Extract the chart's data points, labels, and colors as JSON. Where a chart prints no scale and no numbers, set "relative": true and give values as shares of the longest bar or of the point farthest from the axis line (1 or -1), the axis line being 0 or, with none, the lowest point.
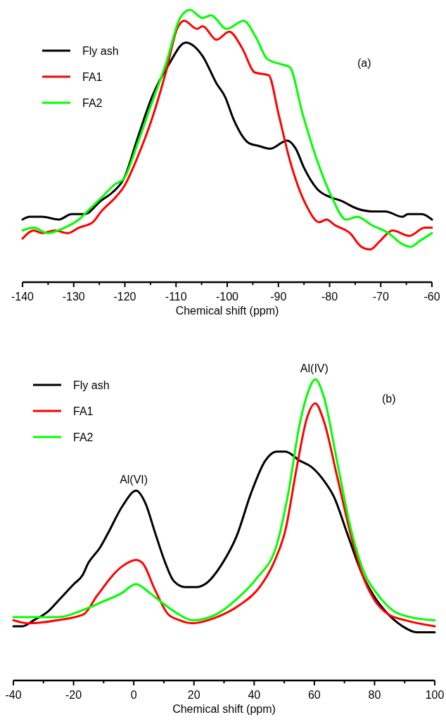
{
  "chart_data": [
    {
      "type": "line",
      "relative": true,
      "xlabel": "Chemical shift (ppm)",
      "xlim": [
        -140,
        -60
      ],
      "xticks": [
        -140,
        {
          "value": -135,
          "label": null
        },
        -130,
        {
          "value": -125,
          "label": null
        },
        -120,
        {
          "value": -115,
          "label": null
        },
        -110,
        {
          "value": -105,
          "label": null
        },
        -100,
        {
          "value": -95,
          "label": null
        },
        -90,
        {
          "value": -85,
          "label": null
        },
        -80,
        {
          "value": -75,
          "label": null
        },
        -70,
        {
          "value": -65,
          "label": null
        },
        -60
      ],
      "legend": "top left",
      "grid": false,
      "annotations": [
        "(a)"
      ],
      "series": [
        {
          "name": "Fly ash",
          "color": "#000000",
          "x": [
            -140,
            -138.6,
            -136.2,
            -132.9,
            -130.4,
            -127.9,
            -124.6,
            -122.4,
            -120.2,
            -117.5,
            -114.7,
            -111.4,
            -108.1,
            -104.8,
            -102.1,
            -100.4,
            -98.8,
            -95.7,
            -93.8,
            -91.6,
            -88.3,
            -86.6,
            -85.0,
            -82.3,
            -79.5,
            -77.9,
            -74.6,
            -71.8,
            -69.1,
            -65.8,
            -64.7,
            -62.0,
            -60
          ],
          "values": [
            0.23,
            0.24,
            0.24,
            0.23,
            0.25,
            0.25,
            0.3,
            0.33,
            0.38,
            0.53,
            0.68,
            0.8,
            0.88,
            0.83,
            0.73,
            0.68,
            0.6,
            0.51,
            0.5,
            0.49,
            0.52,
            0.49,
            0.42,
            0.34,
            0.31,
            0.3,
            0.27,
            0.26,
            0.26,
            0.24,
            0.25,
            0.25,
            0.23
          ]
        },
        {
          "name": "FA1",
          "color": "#ff0000",
          "x": [
            -140,
            -137.8,
            -136.2,
            -133.7,
            -131.2,
            -129.0,
            -126.3,
            -124.6,
            -121.9,
            -120.2,
            -117.5,
            -114.7,
            -112.0,
            -109.8,
            -108.4,
            -105.9,
            -104.8,
            -102.1,
            -99.6,
            -97.1,
            -94.6,
            -91.9,
            -90.0,
            -87.8,
            -84.5,
            -82.0,
            -80.6,
            -79.0,
            -76.0,
            -73.8,
            -72.1,
            -70.2,
            -67.7,
            -64.4,
            -61.4,
            -60
          ],
          "values": [
            0.16,
            0.19,
            0.18,
            0.19,
            0.18,
            0.2,
            0.22,
            0.26,
            0.31,
            0.35,
            0.46,
            0.6,
            0.77,
            0.93,
            0.96,
            0.93,
            0.94,
            0.89,
            0.92,
            0.86,
            0.77,
            0.76,
            0.62,
            0.45,
            0.28,
            0.22,
            0.23,
            0.21,
            0.18,
            0.13,
            0.12,
            0.15,
            0.19,
            0.17,
            0.2,
            0.2
          ]
        },
        {
          "name": "FA2",
          "color": "#00ff00",
          "x": [
            -140,
            -137.8,
            -135.1,
            -131.8,
            -129.0,
            -126.8,
            -124.6,
            -121.9,
            -120.2,
            -117.5,
            -114.7,
            -112.0,
            -109.2,
            -107.3,
            -104.8,
            -103.2,
            -100.1,
            -96.8,
            -94.4,
            -92.2,
            -89.4,
            -87.8,
            -85.3,
            -82.3,
            -79.5,
            -76.8,
            -74.6,
            -71.8,
            -68.5,
            -65.8,
            -64.1,
            -62.5,
            -60
          ],
          "values": [
            0.19,
            0.2,
            0.18,
            0.2,
            0.23,
            0.27,
            0.31,
            0.36,
            0.38,
            0.51,
            0.66,
            0.8,
            0.97,
            1,
            0.97,
            0.98,
            0.93,
            0.96,
            0.9,
            0.82,
            0.8,
            0.79,
            0.62,
            0.44,
            0.31,
            0.23,
            0.24,
            0.21,
            0.18,
            0.14,
            0.13,
            0.15,
            0.18
          ]
        }
      ]
    },
    {
      "type": "line",
      "relative": true,
      "xlabel": "Chemical shift (ppm)",
      "xlim": [
        -40,
        100
      ],
      "xticks": [
        -40,
        {
          "value": -30,
          "label": null
        },
        -20,
        {
          "value": -10,
          "label": null
        },
        0,
        {
          "value": 10,
          "label": null
        },
        20,
        {
          "value": 30,
          "label": null
        },
        40,
        {
          "value": 50,
          "label": null
        },
        60,
        {
          "value": 70,
          "label": null
        },
        80,
        {
          "value": 90,
          "label": null
        },
        100
      ],
      "legend": "top left",
      "grid": false,
      "annotations": [
        "(b)",
        {
          "text": "Al(VI)",
          "x": 0,
          "y": 0.63
        },
        {
          "text": "Al(IV)",
          "x": 60,
          "y": 1
        }
      ],
      "series": [
        {
          "name": "Fly ash",
          "color": "#000000",
          "x": [
            -40,
            -37.0,
            -33.2,
            -28.4,
            -24.6,
            -19.9,
            -17.0,
            -15.1,
            -11.3,
            -8.5,
            -3.7,
            0.8,
            3.8,
            7.1,
            10.5,
            13.3,
            17.1,
            20.9,
            23.7,
            29.5,
            34.2,
            38.9,
            43.7,
            47.5,
            50.4,
            55.1,
            58.9,
            62.7,
            66.5,
            71.2,
            76.0,
            79.8,
            84.5,
            89.3,
            94.0,
            100
          ],
          "values": [
            0.18,
            0.18,
            0.2,
            0.23,
            0.27,
            0.32,
            0.35,
            0.39,
            0.44,
            0.49,
            0.58,
            0.63,
            0.59,
            0.49,
            0.39,
            0.33,
            0.31,
            0.31,
            0.32,
            0.39,
            0.48,
            0.62,
            0.73,
            0.76,
            0.76,
            0.73,
            0.71,
            0.67,
            0.61,
            0.48,
            0.35,
            0.28,
            0.22,
            0.18,
            0.16,
            0.16
          ]
        },
        {
          "name": "FA1",
          "color": "#ff0000",
          "x": [
            -40,
            -35.1,
            -25.6,
            -16.6,
            -12.3,
            -3.7,
            0.8,
            2.9,
            7.1,
            11.4,
            15.2,
            19.5,
            27.5,
            35.1,
            41.8,
            46.5,
            50.4,
            54.2,
            57.5,
            60.3,
            63.2,
            67.5,
            72.2,
            76.0,
            79.8,
            84.5,
            90.2,
            100
          ],
          "values": [
            0.2,
            0.19,
            0.2,
            0.22,
            0.28,
            0.38,
            0.4,
            0.39,
            0.3,
            0.22,
            0.2,
            0.19,
            0.21,
            0.25,
            0.31,
            0.39,
            0.5,
            0.71,
            0.87,
            0.92,
            0.86,
            0.68,
            0.48,
            0.35,
            0.27,
            0.22,
            0.2,
            0.18
          ]
        },
        {
          "name": "FA2",
          "color": "#00ff00",
          "x": [
            -40,
            -35.1,
            -25.6,
            -15.4,
            -10.7,
            -4.0,
            0.7,
            5.4,
            9.2,
            14.9,
            19.5,
            27.5,
            34.2,
            40.9,
            47.5,
            51.3,
            55.1,
            58.0,
            60.3,
            63.2,
            67.5,
            72.2,
            76.9,
            80.7,
            86.4,
            92.1,
            100
          ],
          "values": [
            0.21,
            0.21,
            0.21,
            0.24,
            0.26,
            0.29,
            0.32,
            0.29,
            0.26,
            0.22,
            0.2,
            0.22,
            0.27,
            0.34,
            0.45,
            0.62,
            0.85,
            0.96,
            1,
            0.94,
            0.73,
            0.5,
            0.35,
            0.29,
            0.23,
            0.21,
            0.2
          ]
        }
      ]
    }
  ]
}
